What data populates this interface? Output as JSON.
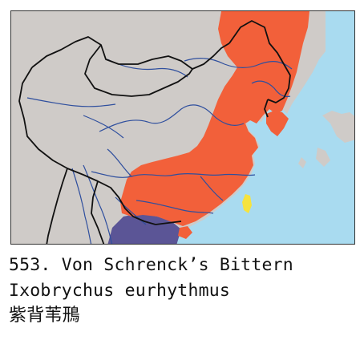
{
  "caption": {
    "entry_line": "553. Von Schrenck’s Bittern",
    "scientific_name": "Ixobrychus eurhythmus",
    "chinese_name": "紫背苇鳽"
  },
  "map": {
    "legend_colors": {
      "sea": "#a9dbf0",
      "land": "#cfcbc8",
      "breeding_range": "#f2603a",
      "wintering_range": "#5b5596",
      "resident_range": "#f6e33e",
      "rivers": "#2f4f9e",
      "borders": "#111111"
    }
  }
}
